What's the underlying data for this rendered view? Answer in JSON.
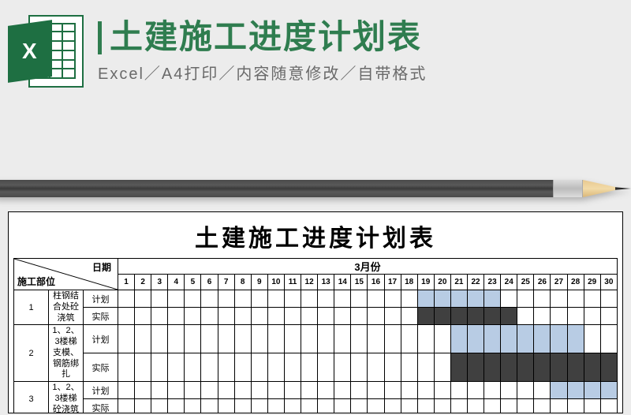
{
  "header": {
    "icon_text": "X",
    "title": "土建施工进度计划表",
    "subtitle": "Excel／A4打印／内容随意修改／自带格式",
    "title_color": "#2f7d4f",
    "subtitle_color": "#6a6a6a"
  },
  "pencil": {
    "body_color": "#4a4a4a",
    "band_color": "#cfcfcf",
    "wood_color": "#e8c88f",
    "tip_color": "#2b2b2b"
  },
  "sheet": {
    "title": "土建施工进度计划表",
    "corner_date_label": "日期",
    "corner_part_label": "施工部位",
    "month_label": "3月份",
    "days": [
      1,
      2,
      3,
      4,
      5,
      6,
      7,
      8,
      9,
      10,
      11,
      12,
      13,
      14,
      15,
      16,
      17,
      18,
      19,
      20,
      21,
      22,
      23,
      24,
      25,
      26,
      27,
      28,
      29,
      30
    ],
    "plan_label": "计划",
    "actual_label": "实际",
    "plan_color": "#b8cce4",
    "actual_color": "#404040",
    "background_color": "#ffffff",
    "border_color": "#000000",
    "tasks": [
      {
        "idx": "1",
        "name": "柱钢结合处砼浇筑",
        "plan": [
          19,
          20,
          21,
          22,
          23
        ],
        "actual": [
          19,
          20,
          21,
          22,
          23,
          24
        ]
      },
      {
        "idx": "2",
        "name": "1、2、3楼梯支模、钢筋绑扎",
        "plan": [
          21,
          22,
          23,
          24,
          25,
          26,
          27,
          28
        ],
        "actual": [
          21,
          22,
          23,
          24,
          25,
          26,
          27,
          28,
          29,
          30
        ]
      },
      {
        "idx": "3",
        "name": "1、2、3楼梯砼浇筑",
        "plan": [
          27,
          28,
          29,
          30
        ],
        "actual": []
      }
    ]
  }
}
